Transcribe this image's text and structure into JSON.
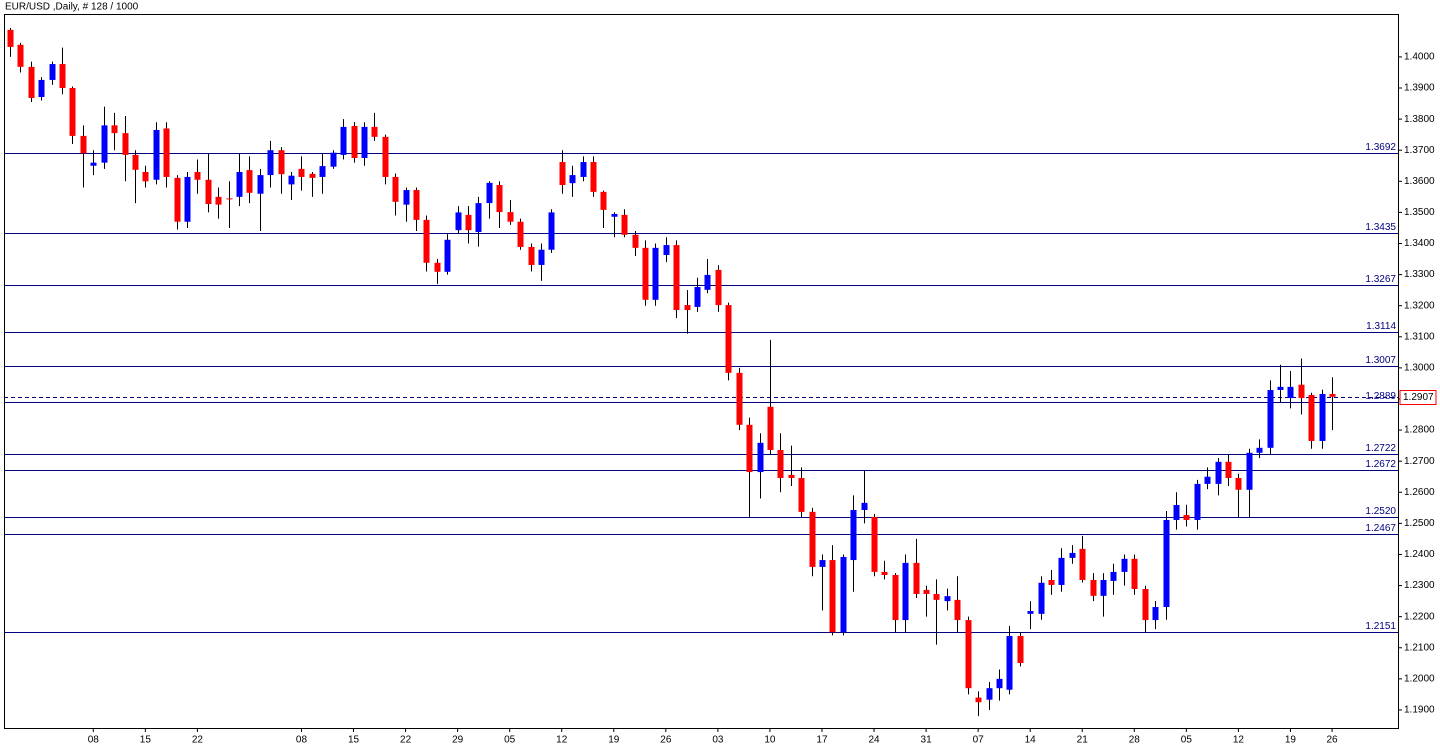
{
  "chart_data": {
    "type": "candlestick",
    "title": "EUR/USD ,Daily, # 128 / 1000",
    "categories": [
      null,
      null,
      null,
      null,
      null,
      null,
      null,
      null,
      "08",
      null,
      null,
      null,
      null,
      "15",
      null,
      null,
      null,
      null,
      "22",
      null,
      null,
      null,
      null,
      null,
      null,
      null,
      null,
      null,
      "08",
      null,
      null,
      null,
      null,
      "15",
      null,
      null,
      null,
      null,
      "22",
      null,
      null,
      null,
      null,
      "29",
      null,
      null,
      null,
      null,
      "05",
      null,
      null,
      null,
      null,
      "12",
      null,
      null,
      null,
      null,
      "19",
      null,
      null,
      null,
      null,
      "26",
      null,
      null,
      null,
      null,
      "03",
      null,
      null,
      null,
      null,
      "10",
      null,
      null,
      null,
      null,
      "17",
      null,
      null,
      null,
      null,
      "24",
      null,
      null,
      null,
      null,
      "31",
      null,
      null,
      null,
      null,
      "07",
      null,
      null,
      null,
      null,
      "14",
      null,
      null,
      null,
      null,
      "21",
      null,
      null,
      null,
      null,
      "28",
      null,
      null,
      null,
      null,
      "05",
      null,
      null,
      null,
      null,
      "12",
      null,
      null,
      null,
      null,
      "19",
      null,
      null,
      null,
      "26"
    ],
    "open": [
      1.4087,
      1.4039,
      1.3968,
      1.3871,
      1.3926,
      1.3977,
      1.39,
      1.3746,
      1.365,
      1.366,
      1.378,
      1.3755,
      1.3685,
      1.363,
      1.3605,
      1.377,
      1.3611,
      1.347,
      1.363,
      1.3605,
      1.355,
      1.3545,
      1.355,
      1.3636,
      1.356,
      1.362,
      1.37,
      1.359,
      1.364,
      1.3624,
      1.3614,
      1.3647,
      1.3685,
      1.3778,
      1.3675,
      1.3775,
      1.3743,
      1.3614,
      1.3525,
      1.3572,
      1.3476,
      1.3338,
      1.3309,
      1.3443,
      1.3492,
      1.3437,
      1.353,
      1.3588,
      1.3501,
      1.347,
      1.3389,
      1.3331,
      1.338,
      1.3662,
      1.3594,
      1.3614,
      1.3662,
      1.3566,
      1.3486,
      1.3492,
      1.3428,
      1.3386,
      1.3219,
      1.3363,
      1.3395,
      1.3202,
      1.3196,
      1.3251,
      1.3315,
      1.3202,
      1.2984,
      1.2817,
      1.2665,
      1.2875,
      1.2736,
      1.2656,
      1.2646,
      1.2537,
      1.236,
      1.2382,
      1.215,
      1.2382,
      1.2543,
      1.2521,
      1.2344,
      1.2334,
      1.2189,
      1.2373,
      1.2286,
      1.2273,
      1.225,
      1.2254,
      1.2189,
      1.194,
      1.1933,
      1.197,
      1.1965,
      1.2138,
      1.2209,
      1.2209,
      1.2318,
      1.2302,
      1.2389,
      1.2418,
      1.2318,
      1.2267,
      1.2315,
      1.2344,
      1.2386,
      1.2289,
      1.2189,
      1.2231,
      1.2511,
      1.2527,
      1.2511,
      1.2627,
      1.2627,
      1.2698,
      1.2646,
      1.2608,
      1.2727,
      1.2743,
      1.2929,
      1.2903,
      1.2946,
      1.2913,
      1.2765,
      1.2916
    ],
    "high": [
      1.4093,
      1.4045,
      1.3985,
      1.3935,
      1.3985,
      1.403,
      1.3905,
      1.378,
      1.37,
      1.384,
      1.382,
      1.381,
      1.37,
      1.365,
      1.379,
      1.379,
      1.362,
      1.363,
      1.367,
      1.369,
      1.358,
      1.36,
      1.369,
      1.368,
      1.364,
      1.373,
      1.371,
      1.363,
      1.368,
      1.363,
      1.369,
      1.37,
      1.38,
      1.379,
      1.379,
      1.382,
      1.375,
      1.3625,
      1.358,
      1.358,
      1.349,
      1.335,
      1.343,
      1.352,
      1.352,
      1.355,
      1.36,
      1.36,
      1.354,
      1.348,
      1.34,
      1.34,
      1.351,
      1.37,
      1.365,
      1.368,
      1.368,
      1.357,
      1.35,
      1.351,
      1.344,
      1.341,
      1.34,
      1.342,
      1.341,
      1.325,
      1.329,
      1.335,
      1.333,
      1.321,
      1.3,
      1.284,
      1.279,
      1.309,
      1.279,
      1.275,
      1.268,
      1.255,
      1.24,
      1.243,
      1.24,
      1.259,
      1.267,
      1.253,
      1.238,
      1.234,
      1.24,
      1.245,
      1.23,
      1.232,
      1.229,
      1.233,
      1.22,
      1.196,
      1.199,
      1.203,
      1.217,
      1.215,
      1.225,
      1.233,
      1.235,
      1.242,
      1.243,
      1.246,
      1.234,
      1.234,
      1.237,
      1.24,
      1.24,
      1.23,
      1.225,
      1.254,
      1.26,
      1.256,
      1.264,
      1.268,
      1.271,
      1.272,
      1.266,
      1.274,
      1.277,
      1.296,
      1.301,
      1.299,
      1.303,
      1.292,
      1.293,
      1.297
    ],
    "low": [
      1.4,
      1.395,
      1.3855,
      1.386,
      1.391,
      1.388,
      1.372,
      1.358,
      1.362,
      1.364,
      1.37,
      1.36,
      1.353,
      1.358,
      1.359,
      1.358,
      1.3445,
      1.345,
      1.356,
      1.35,
      1.348,
      1.345,
      1.352,
      1.353,
      1.344,
      1.358,
      1.356,
      1.354,
      1.357,
      1.355,
      1.356,
      1.364,
      1.367,
      1.366,
      1.365,
      1.373,
      1.359,
      1.349,
      1.347,
      1.344,
      1.331,
      1.327,
      1.33,
      1.343,
      1.34,
      1.339,
      1.348,
      1.345,
      1.346,
      1.338,
      1.331,
      1.328,
      1.337,
      1.356,
      1.355,
      1.36,
      1.355,
      1.345,
      1.342,
      1.342,
      1.336,
      1.32,
      1.32,
      1.334,
      1.316,
      1.311,
      1.318,
      1.324,
      1.318,
      1.296,
      1.28,
      1.252,
      1.258,
      1.272,
      1.26,
      1.262,
      1.252,
      1.233,
      1.222,
      1.214,
      1.214,
      1.228,
      1.25,
      1.233,
      1.232,
      1.215,
      1.215,
      1.226,
      1.22,
      1.211,
      1.222,
      1.215,
      1.195,
      1.188,
      1.19,
      1.193,
      1.195,
      1.204,
      1.216,
      1.219,
      1.227,
      1.228,
      1.237,
      1.231,
      1.225,
      1.22,
      1.227,
      1.23,
      1.227,
      1.215,
      1.216,
      1.219,
      1.248,
      1.249,
      1.248,
      1.261,
      1.259,
      1.262,
      1.252,
      1.252,
      1.271,
      1.272,
      1.289,
      1.287,
      1.285,
      1.274,
      1.274,
      1.28
    ],
    "close": [
      1.4032,
      1.3968,
      1.3868,
      1.3926,
      1.3977,
      1.39,
      1.3746,
      1.369,
      1.366,
      1.378,
      1.3755,
      1.3685,
      1.3637,
      1.36,
      1.3765,
      1.3614,
      1.347,
      1.3614,
      1.3605,
      1.3527,
      1.3525,
      1.3543,
      1.363,
      1.3563,
      1.362,
      1.37,
      1.3623,
      1.3618,
      1.3614,
      1.3611,
      1.3649,
      1.3692,
      1.3775,
      1.3675,
      1.3775,
      1.3743,
      1.3614,
      1.3534,
      1.3572,
      1.3476,
      1.3338,
      1.3309,
      1.3412,
      1.35,
      1.3443,
      1.353,
      1.3595,
      1.3501,
      1.347,
      1.3389,
      1.3331,
      1.338,
      1.35,
      1.3588,
      1.362,
      1.3662,
      1.3566,
      1.3508,
      1.3495,
      1.3428,
      1.3386,
      1.3219,
      1.3386,
      1.3395,
      1.3186,
      1.3186,
      1.326,
      1.3299,
      1.3202,
      1.2984,
      1.2817,
      1.2665,
      1.2759,
      1.2736,
      1.2646,
      1.2646,
      1.2537,
      1.236,
      1.2382,
      1.215,
      1.2392,
      1.2543,
      1.2566,
      1.2344,
      1.2334,
      1.2189,
      1.2373,
      1.2273,
      1.2273,
      1.2254,
      1.2266,
      1.2189,
      1.197,
      1.1925,
      1.197,
      1.2,
      1.2138,
      1.2051,
      1.2218,
      1.2309,
      1.2302,
      1.2389,
      1.2405,
      1.2318,
      1.2267,
      1.2318,
      1.2344,
      1.2386,
      1.2289,
      1.2189,
      1.2231,
      1.2511,
      1.2559,
      1.2511,
      1.2627,
      1.265,
      1.2698,
      1.2646,
      1.2608,
      1.2727,
      1.2743,
      1.2929,
      1.2939,
      1.2939,
      1.2903,
      1.2765,
      1.2916,
      1.2907
    ],
    "up_color": "#0000ff",
    "down_color": "#ff0000",
    "level_color": "#000080",
    "ylim": [
      1.1842,
      1.4138
    ],
    "yticks": [
      {
        "value": 1.19,
        "label": "1.1900"
      },
      {
        "value": 1.2,
        "label": "1.2000"
      },
      {
        "value": 1.21,
        "label": "1.2100"
      },
      {
        "value": 1.22,
        "label": "1.2200"
      },
      {
        "value": 1.23,
        "label": "1.2300"
      },
      {
        "value": 1.24,
        "label": "1.2400"
      },
      {
        "value": 1.25,
        "label": "1.2500"
      },
      {
        "value": 1.26,
        "label": "1.2600"
      },
      {
        "value": 1.27,
        "label": "1.2700"
      },
      {
        "value": 1.28,
        "label": "1.2800"
      },
      {
        "value": 1.29,
        "label": "1.2900"
      },
      {
        "value": 1.3,
        "label": "1.3000"
      },
      {
        "value": 1.31,
        "label": "1.3100"
      },
      {
        "value": 1.32,
        "label": "1.3200"
      },
      {
        "value": 1.33,
        "label": "1.3300"
      },
      {
        "value": 1.34,
        "label": "1.3400"
      },
      {
        "value": 1.35,
        "label": "1.3500"
      },
      {
        "value": 1.36,
        "label": "1.3600"
      },
      {
        "value": 1.37,
        "label": "1.3700"
      },
      {
        "value": 1.38,
        "label": "1.3800"
      },
      {
        "value": 1.39,
        "label": "1.3900"
      },
      {
        "value": 1.4,
        "label": "1.4000"
      }
    ],
    "levels": [
      {
        "value": 1.3692,
        "label": "1.3692"
      },
      {
        "value": 1.3435,
        "label": "1.3435"
      },
      {
        "value": 1.3267,
        "label": "1.3267"
      },
      {
        "value": 1.3114,
        "label": "1.3114"
      },
      {
        "value": 1.3007,
        "label": "1.3007"
      },
      {
        "value": 1.2889,
        "label": "1.2889"
      },
      {
        "value": 1.2722,
        "label": "1.2722"
      },
      {
        "value": 1.2672,
        "label": "1.2672"
      },
      {
        "value": 1.252,
        "label": "1.2520"
      },
      {
        "value": 1.2467,
        "label": "1.2467"
      },
      {
        "value": 1.2151,
        "label": "1.2151"
      }
    ],
    "current_price": {
      "value": 1.2907,
      "label": "1.2907"
    },
    "current_price_color": "#ff0000"
  }
}
